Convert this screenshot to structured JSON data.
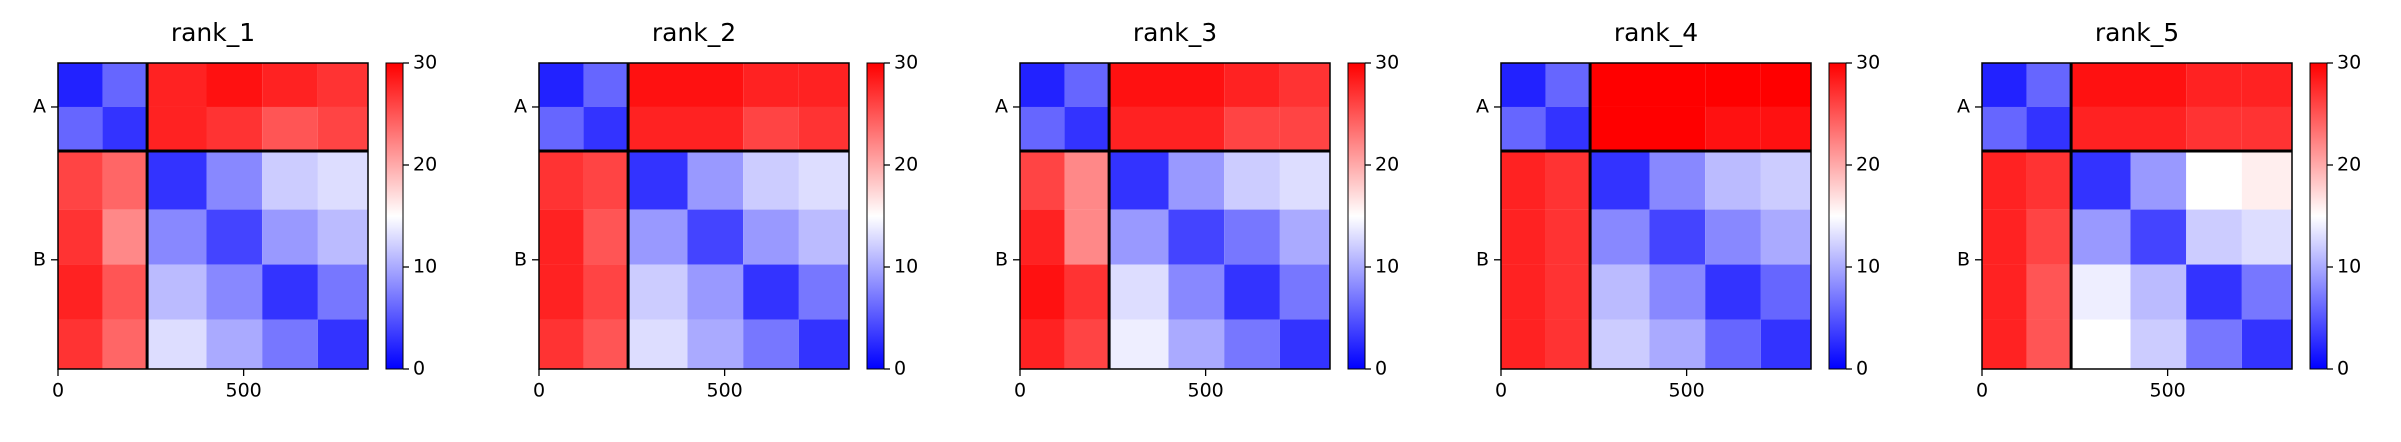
{
  "chart_data": [
    {
      "type": "heatmap",
      "title": "rank_1",
      "colormap": "bwr",
      "xlim": [
        0,
        835
      ],
      "ylim": [
        835,
        0
      ],
      "xticks": [
        0,
        500
      ],
      "yticks": [
        {
          "value": 120,
          "label": "A"
        },
        {
          "value": 537,
          "label": "B"
        }
      ],
      "boundaries": [
        240
      ],
      "clim": [
        0,
        30
      ],
      "cticks": [
        0,
        10,
        20,
        30
      ],
      "edges": [
        0,
        120,
        240,
        400,
        550,
        700,
        835
      ],
      "values": [
        [
          2,
          6,
          28,
          29,
          28,
          27
        ],
        [
          6,
          3,
          28,
          27,
          25,
          26
        ],
        [
          26,
          24,
          3,
          8,
          12,
          13
        ],
        [
          27,
          22,
          8,
          4,
          9,
          11
        ],
        [
          28,
          25,
          11,
          8,
          3,
          7
        ],
        [
          27,
          24,
          13,
          10,
          7,
          3
        ]
      ]
    },
    {
      "type": "heatmap",
      "title": "rank_2",
      "colormap": "bwr",
      "xlim": [
        0,
        835
      ],
      "ylim": [
        835,
        0
      ],
      "xticks": [
        0,
        500
      ],
      "yticks": [
        {
          "value": 120,
          "label": "A"
        },
        {
          "value": 537,
          "label": "B"
        }
      ],
      "boundaries": [
        240
      ],
      "clim": [
        0,
        30
      ],
      "cticks": [
        0,
        10,
        20,
        30
      ],
      "edges": [
        0,
        120,
        240,
        400,
        550,
        700,
        835
      ],
      "values": [
        [
          2,
          6,
          29,
          29,
          28,
          28
        ],
        [
          6,
          3,
          28,
          28,
          26,
          27
        ],
        [
          27,
          26,
          3,
          9,
          12,
          13
        ],
        [
          28,
          25,
          9,
          4,
          9,
          11
        ],
        [
          28,
          26,
          12,
          9,
          3,
          7
        ],
        [
          27,
          25,
          13,
          10,
          7,
          3
        ]
      ]
    },
    {
      "type": "heatmap",
      "title": "rank_3",
      "colormap": "bwr",
      "xlim": [
        0,
        835
      ],
      "ylim": [
        835,
        0
      ],
      "xticks": [
        0,
        500
      ],
      "yticks": [
        {
          "value": 120,
          "label": "A"
        },
        {
          "value": 537,
          "label": "B"
        }
      ],
      "boundaries": [
        240
      ],
      "clim": [
        0,
        30
      ],
      "cticks": [
        0,
        10,
        20,
        30
      ],
      "edges": [
        0,
        120,
        240,
        400,
        550,
        700,
        835
      ],
      "values": [
        [
          2,
          6,
          29,
          29,
          28,
          27
        ],
        [
          6,
          3,
          28,
          28,
          26,
          26
        ],
        [
          26,
          22,
          3,
          9,
          12,
          13
        ],
        [
          28,
          22,
          9,
          4,
          7,
          10
        ],
        [
          29,
          27,
          13,
          8,
          3,
          7
        ],
        [
          28,
          26,
          14,
          10,
          7,
          3
        ]
      ]
    },
    {
      "type": "heatmap",
      "title": "rank_4",
      "colormap": "bwr",
      "xlim": [
        0,
        835
      ],
      "ylim": [
        835,
        0
      ],
      "xticks": [
        0,
        500
      ],
      "yticks": [
        {
          "value": 120,
          "label": "A"
        },
        {
          "value": 537,
          "label": "B"
        }
      ],
      "boundaries": [
        240
      ],
      "clim": [
        0,
        30
      ],
      "cticks": [
        0,
        10,
        20,
        30
      ],
      "edges": [
        0,
        120,
        240,
        400,
        550,
        700,
        835
      ],
      "values": [
        [
          2,
          6,
          30,
          30,
          30,
          30
        ],
        [
          6,
          3,
          30,
          30,
          29,
          29
        ],
        [
          28,
          27,
          3,
          8,
          11,
          12
        ],
        [
          28,
          27,
          8,
          4,
          8,
          10
        ],
        [
          28,
          27,
          11,
          8,
          3,
          6
        ],
        [
          28,
          27,
          12,
          10,
          6,
          3
        ]
      ]
    },
    {
      "type": "heatmap",
      "title": "rank_5",
      "colormap": "bwr",
      "xlim": [
        0,
        835
      ],
      "ylim": [
        835,
        0
      ],
      "xticks": [
        0,
        500
      ],
      "yticks": [
        {
          "value": 120,
          "label": "A"
        },
        {
          "value": 537,
          "label": "B"
        }
      ],
      "boundaries": [
        240
      ],
      "clim": [
        0,
        30
      ],
      "cticks": [
        0,
        10,
        20,
        30
      ],
      "edges": [
        0,
        120,
        240,
        400,
        550,
        700,
        835
      ],
      "values": [
        [
          2,
          6,
          29,
          29,
          28,
          28
        ],
        [
          6,
          3,
          28,
          28,
          27,
          27
        ],
        [
          28,
          27,
          3,
          9,
          15,
          16
        ],
        [
          28,
          26,
          9,
          4,
          12,
          13
        ],
        [
          28,
          25,
          14,
          11,
          3,
          7
        ],
        [
          28,
          25,
          15,
          12,
          7,
          3
        ]
      ]
    }
  ]
}
